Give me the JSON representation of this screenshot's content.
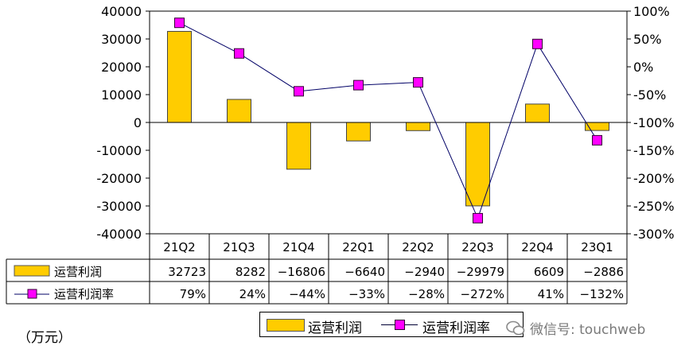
{
  "chart_data": {
    "type": "bar+line",
    "categories": [
      "21Q2",
      "21Q3",
      "21Q4",
      "22Q1",
      "22Q2",
      "22Q3",
      "22Q4",
      "23Q1"
    ],
    "series": [
      {
        "name": "运营利润",
        "type": "bar",
        "axis": "left",
        "values": [
          32723,
          8282,
          -16806,
          -6640,
          -2940,
          -29979,
          6609,
          -2886
        ],
        "labels": [
          "32723",
          "8282",
          "-16806",
          "-6640",
          "-2940",
          "-29979",
          "6609",
          "-2886"
        ],
        "color": "#ffcc00"
      },
      {
        "name": "运营利润率",
        "type": "line",
        "axis": "right",
        "values": [
          79,
          24,
          -44,
          -33,
          -28,
          -272,
          41,
          -132
        ],
        "labels": [
          "79%",
          "24%",
          "-44%",
          "-33%",
          "-28%",
          "-272%",
          "41%",
          "-132%"
        ],
        "color": "#ff00ff"
      }
    ],
    "y_left": {
      "min": -40000,
      "max": 40000,
      "step": 10000,
      "ticks": [
        "40000",
        "30000",
        "20000",
        "10000",
        "0",
        "-10000",
        "-20000",
        "-30000",
        "-40000"
      ]
    },
    "y_right": {
      "min": -300,
      "max": 100,
      "step": 50,
      "ticks": [
        "100%",
        "50%",
        "0%",
        "-50%",
        "-100%",
        "-150%",
        "-200%",
        "-250%",
        "-300%"
      ]
    },
    "grid": false,
    "legend_position": "bottom",
    "unit_note": "（万元）",
    "watermark": "微信号: touchweb"
  }
}
